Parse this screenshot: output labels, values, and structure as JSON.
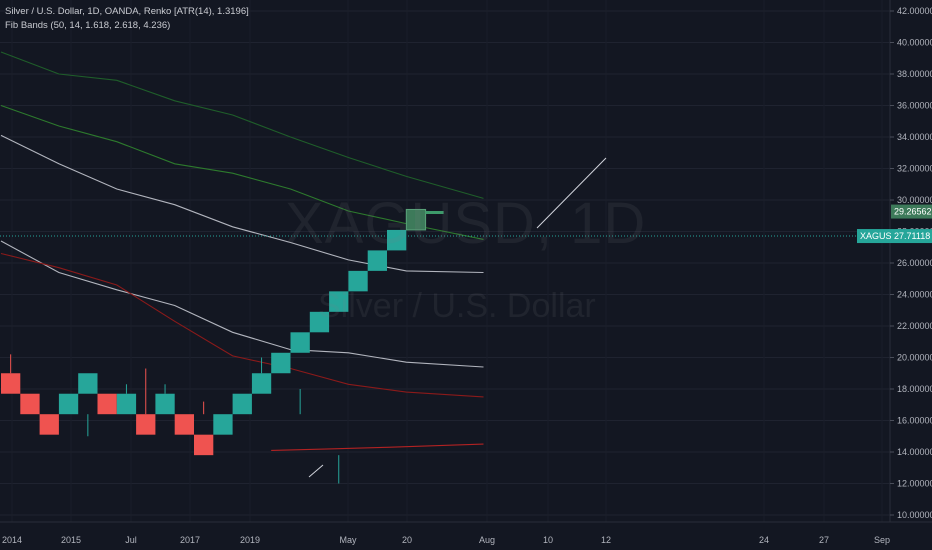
{
  "legend": {
    "line1": "Silver / U.S. Dollar, 1D, OANDA, Renko [ATR(14), 1.3196]",
    "line2": "Fib Bands (50, 14, 1.618, 2.618, 4.236)"
  },
  "watermark": {
    "symbol": "XAGUSD, 1D",
    "description": "Silver / U.S. Dollar"
  },
  "colors": {
    "background": "#131722",
    "up_brick": "#26a69a",
    "down_brick": "#ef5350",
    "current_brick": "#3d7a5a",
    "upper_band_1": "#1f5e2a",
    "upper_band_2": "#2d7a2d",
    "basis": "#b2b5be",
    "lower_band": "#8b1a1a",
    "lower_band_2": "#b22222",
    "price_line": "#26a69a",
    "trend_line": "#d1d4dc"
  },
  "chart_data": {
    "type": "renko",
    "symbol": "XAGUSD",
    "timeframe": "1D",
    "brick_size": 1.3196,
    "y_axis": {
      "min": 10,
      "max": 42,
      "ticks": [
        "42.00000",
        "40.00000",
        "38.00000",
        "36.00000",
        "34.00000",
        "32.00000",
        "30.00000",
        "28.00000",
        "26.00000",
        "24.00000",
        "22.00000",
        "20.00000",
        "18.00000",
        "16.00000",
        "14.00000",
        "12.00000",
        "10.00000"
      ]
    },
    "x_axis": {
      "labels": [
        "2014",
        "2015",
        "Jul",
        "2017",
        "2019",
        "May",
        "20",
        "Aug",
        "10",
        "12",
        "24",
        "27",
        "Sep"
      ]
    },
    "bricks": [
      {
        "index": 0,
        "dir": "down",
        "low": 17.7,
        "high": 19.0
      },
      {
        "index": 1,
        "dir": "down",
        "low": 16.4,
        "high": 17.7
      },
      {
        "index": 2,
        "dir": "down",
        "low": 15.1,
        "high": 16.4
      },
      {
        "index": 3,
        "dir": "up",
        "low": 16.4,
        "high": 17.7
      },
      {
        "index": 4,
        "dir": "up",
        "low": 17.7,
        "high": 19.0
      },
      {
        "index": 5,
        "dir": "down",
        "low": 16.4,
        "high": 17.7
      },
      {
        "index": 6,
        "dir": "up",
        "low": 16.4,
        "high": 17.7
      },
      {
        "index": 7,
        "dir": "down",
        "low": 15.1,
        "high": 16.4
      },
      {
        "index": 8,
        "dir": "up",
        "low": 16.4,
        "high": 17.7
      },
      {
        "index": 9,
        "dir": "down",
        "low": 15.1,
        "high": 16.4
      },
      {
        "index": 10,
        "dir": "down",
        "low": 13.8,
        "high": 15.1
      },
      {
        "index": 11,
        "dir": "up",
        "low": 15.1,
        "high": 16.4
      },
      {
        "index": 12,
        "dir": "up",
        "low": 16.4,
        "high": 17.7
      },
      {
        "index": 13,
        "dir": "up",
        "low": 17.7,
        "high": 19.0
      },
      {
        "index": 14,
        "dir": "up",
        "low": 19.0,
        "high": 20.3
      },
      {
        "index": 15,
        "dir": "up",
        "low": 20.3,
        "high": 21.6
      },
      {
        "index": 16,
        "dir": "up",
        "low": 21.6,
        "high": 22.9
      },
      {
        "index": 17,
        "dir": "up",
        "low": 22.9,
        "high": 24.2
      },
      {
        "index": 18,
        "dir": "up",
        "low": 24.2,
        "high": 25.5
      },
      {
        "index": 19,
        "dir": "up",
        "low": 25.5,
        "high": 26.8
      },
      {
        "index": 20,
        "dir": "up",
        "low": 26.8,
        "high": 28.1
      },
      {
        "index": 21,
        "dir": "current",
        "low": 28.1,
        "high": 29.4
      }
    ],
    "wicks": [
      {
        "index": 0,
        "from": 19.0,
        "to": 20.2
      },
      {
        "index": 4,
        "from": 15.0,
        "to": 16.4
      },
      {
        "index": 6,
        "from": 17.7,
        "to": 18.3
      },
      {
        "index": 7,
        "from": 16.4,
        "to": 19.3
      },
      {
        "index": 8,
        "from": 17.7,
        "to": 18.3
      },
      {
        "index": 10,
        "from": 16.4,
        "to": 17.2
      },
      {
        "index": 13,
        "from": 19.0,
        "to": 20.0
      },
      {
        "index": 15,
        "from": 16.4,
        "to": 18.0
      },
      {
        "index": 17,
        "from": 12.0,
        "to": 13.8
      }
    ],
    "bands": [
      {
        "name": "upper_4.236",
        "color": "#1f5e2a",
        "points": [
          [
            0,
            39.4
          ],
          [
            3,
            38.0
          ],
          [
            6,
            37.6
          ],
          [
            9,
            36.3
          ],
          [
            12,
            35.4
          ],
          [
            15,
            34.0
          ],
          [
            18,
            32.7
          ],
          [
            21,
            31.5
          ],
          [
            25,
            30.1
          ]
        ]
      },
      {
        "name": "upper_2.618",
        "color": "#2d7a2d",
        "points": [
          [
            0,
            36.0
          ],
          [
            3,
            34.7
          ],
          [
            6,
            33.7
          ],
          [
            9,
            32.3
          ],
          [
            12,
            31.7
          ],
          [
            15,
            30.7
          ],
          [
            18,
            29.3
          ],
          [
            21,
            28.5
          ],
          [
            25,
            27.5
          ]
        ]
      },
      {
        "name": "basis",
        "color": "#b2b5be",
        "points": [
          [
            0,
            34.1
          ],
          [
            3,
            32.3
          ],
          [
            6,
            30.7
          ],
          [
            9,
            29.7
          ],
          [
            12,
            28.3
          ],
          [
            15,
            27.3
          ],
          [
            18,
            26.2
          ],
          [
            21,
            25.5
          ],
          [
            25,
            25.4
          ]
        ]
      },
      {
        "name": "lower_2.618",
        "color": "#b2b5be",
        "points": [
          [
            0,
            27.4
          ],
          [
            3,
            25.4
          ],
          [
            6,
            24.3
          ],
          [
            9,
            23.3
          ],
          [
            12,
            21.6
          ],
          [
            15,
            20.5
          ],
          [
            18,
            20.3
          ],
          [
            21,
            19.7
          ],
          [
            25,
            19.4
          ]
        ]
      },
      {
        "name": "lower_4.236",
        "color": "#8b1a1a",
        "points": [
          [
            0,
            26.6
          ],
          [
            3,
            25.7
          ],
          [
            6,
            24.6
          ],
          [
            9,
            22.3
          ],
          [
            12,
            20.1
          ],
          [
            15,
            19.3
          ],
          [
            18,
            18.3
          ],
          [
            21,
            17.8
          ],
          [
            25,
            17.5
          ]
        ]
      },
      {
        "name": "lower_far",
        "color": "#b22222",
        "points": [
          [
            14,
            14.1
          ],
          [
            17,
            14.2
          ],
          [
            20,
            14.3
          ],
          [
            25,
            14.5
          ]
        ]
      }
    ],
    "price_line": 27.71118,
    "last_value": 29.26562,
    "price_tags": [
      {
        "label": "29.26562",
        "value": 29.26562,
        "style": "box-green"
      },
      {
        "label": "XAGUSD",
        "value": 27.71118,
        "style": "symbol-tag"
      },
      {
        "label": "27.71118",
        "value": 27.71118,
        "style": "box-teal"
      }
    ]
  }
}
